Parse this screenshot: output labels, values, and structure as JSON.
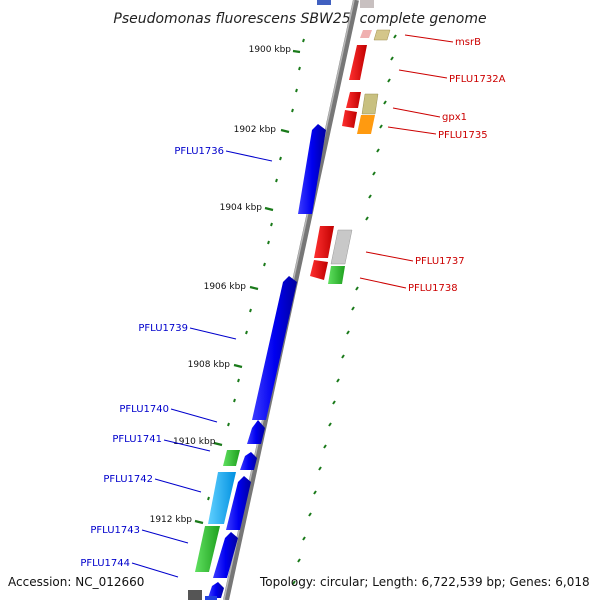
{
  "title": "Pseudomonas fluorescens SBW25, complete genome",
  "accession": "Accession: NC_012660",
  "topology": "Topology: circular; Length: 6,722,539 bp; Genes: 6,018",
  "ticks": [
    "1900 kbp",
    "1902 kbp",
    "1904 kbp",
    "1906 kbp",
    "1908 kbp",
    "1910 kbp",
    "1912 kbp"
  ],
  "genes_forward": [
    "msrB",
    "PFLU1732A",
    "gpx1",
    "PFLU1735",
    "PFLU1737",
    "PFLU1738"
  ],
  "genes_reverse": [
    "PFLU1736",
    "PFLU1739",
    "PFLU1740",
    "PFLU1741",
    "PFLU1742",
    "PFLU1743",
    "PFLU1744"
  ],
  "colors": {
    "forward_label": "#cc0000",
    "reverse_label": "#0000cc",
    "backbone": "#888888",
    "tick": "#1a7a1a"
  }
}
